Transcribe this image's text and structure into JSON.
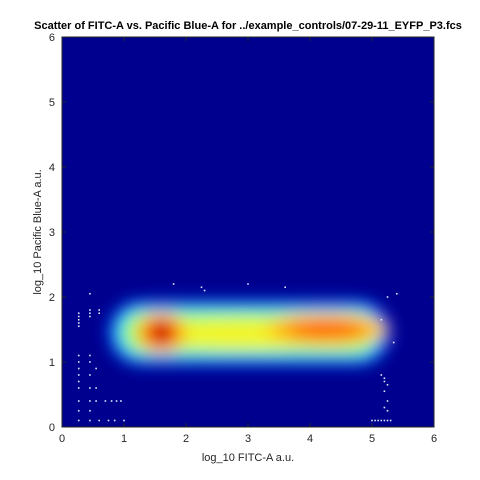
{
  "chart_data": {
    "type": "heatmap",
    "title": "Scatter of FITC-A vs. Pacific Blue-A for ../example_controls/07-29-11_EYFP_P3.fcs",
    "xlabel": "log_10 FITC-A a.u.",
    "ylabel": "log_10 Pacific Blue-A a.u.",
    "xlim": [
      0,
      6
    ],
    "ylim": [
      0,
      6
    ],
    "xticks": [
      0,
      1,
      2,
      3,
      4,
      5,
      6
    ],
    "yticks": [
      0,
      1,
      2,
      3,
      4,
      5,
      6
    ],
    "grid": false,
    "colormap": "jet",
    "background_color": "#00008f",
    "density_peaks": [
      {
        "x": 1.6,
        "y": 1.45,
        "density": 1.0
      },
      {
        "x": 4.25,
        "y": 1.5,
        "density": 0.86
      }
    ],
    "density_spread": {
      "x_min": 0.75,
      "x_max": 5.3,
      "y_min": 0.95,
      "y_max": 1.95
    },
    "sparse_points": [
      {
        "x": 0.27,
        "y": 1.75
      },
      {
        "x": 0.27,
        "y": 1.7
      },
      {
        "x": 0.27,
        "y": 1.65
      },
      {
        "x": 0.27,
        "y": 1.6
      },
      {
        "x": 0.27,
        "y": 1.55
      },
      {
        "x": 0.27,
        "y": 1.1
      },
      {
        "x": 0.27,
        "y": 1.0
      },
      {
        "x": 0.27,
        "y": 0.9
      },
      {
        "x": 0.27,
        "y": 0.8
      },
      {
        "x": 0.27,
        "y": 0.7
      },
      {
        "x": 0.27,
        "y": 0.6
      },
      {
        "x": 0.27,
        "y": 0.4
      },
      {
        "x": 0.27,
        "y": 0.25
      },
      {
        "x": 0.27,
        "y": 0.1
      },
      {
        "x": 0.45,
        "y": 2.05
      },
      {
        "x": 0.45,
        "y": 1.8
      },
      {
        "x": 0.45,
        "y": 1.75
      },
      {
        "x": 0.45,
        "y": 1.7
      },
      {
        "x": 0.45,
        "y": 1.1
      },
      {
        "x": 0.45,
        "y": 1.0
      },
      {
        "x": 0.45,
        "y": 0.8
      },
      {
        "x": 0.45,
        "y": 0.6
      },
      {
        "x": 0.45,
        "y": 0.4
      },
      {
        "x": 0.45,
        "y": 0.25
      },
      {
        "x": 0.45,
        "y": 0.1
      },
      {
        "x": 0.55,
        "y": 0.9
      },
      {
        "x": 0.55,
        "y": 0.6
      },
      {
        "x": 0.55,
        "y": 0.4
      },
      {
        "x": 0.6,
        "y": 1.8
      },
      {
        "x": 0.6,
        "y": 1.75
      },
      {
        "x": 0.6,
        "y": 0.1
      },
      {
        "x": 0.7,
        "y": 0.4
      },
      {
        "x": 0.75,
        "y": 0.1
      },
      {
        "x": 0.8,
        "y": 0.4
      },
      {
        "x": 0.85,
        "y": 0.1
      },
      {
        "x": 0.88,
        "y": 0.4
      },
      {
        "x": 0.95,
        "y": 0.4
      },
      {
        "x": 1.0,
        "y": 0.1
      },
      {
        "x": 1.8,
        "y": 2.2
      },
      {
        "x": 2.25,
        "y": 2.15
      },
      {
        "x": 2.3,
        "y": 2.1
      },
      {
        "x": 3.0,
        "y": 2.2
      },
      {
        "x": 3.6,
        "y": 2.15
      },
      {
        "x": 5.15,
        "y": 1.65
      },
      {
        "x": 5.25,
        "y": 2.0
      },
      {
        "x": 5.4,
        "y": 2.05
      },
      {
        "x": 5.35,
        "y": 1.3
      },
      {
        "x": 5.15,
        "y": 0.8
      },
      {
        "x": 5.2,
        "y": 0.75
      },
      {
        "x": 5.2,
        "y": 0.7
      },
      {
        "x": 5.25,
        "y": 0.65
      },
      {
        "x": 5.2,
        "y": 0.55
      },
      {
        "x": 5.25,
        "y": 0.4
      },
      {
        "x": 5.2,
        "y": 0.3
      },
      {
        "x": 5.25,
        "y": 0.25
      },
      {
        "x": 5.0,
        "y": 0.1
      },
      {
        "x": 5.05,
        "y": 0.1
      },
      {
        "x": 5.1,
        "y": 0.1
      },
      {
        "x": 5.15,
        "y": 0.1
      },
      {
        "x": 5.2,
        "y": 0.1
      },
      {
        "x": 5.25,
        "y": 0.1
      },
      {
        "x": 5.3,
        "y": 0.1
      }
    ]
  }
}
